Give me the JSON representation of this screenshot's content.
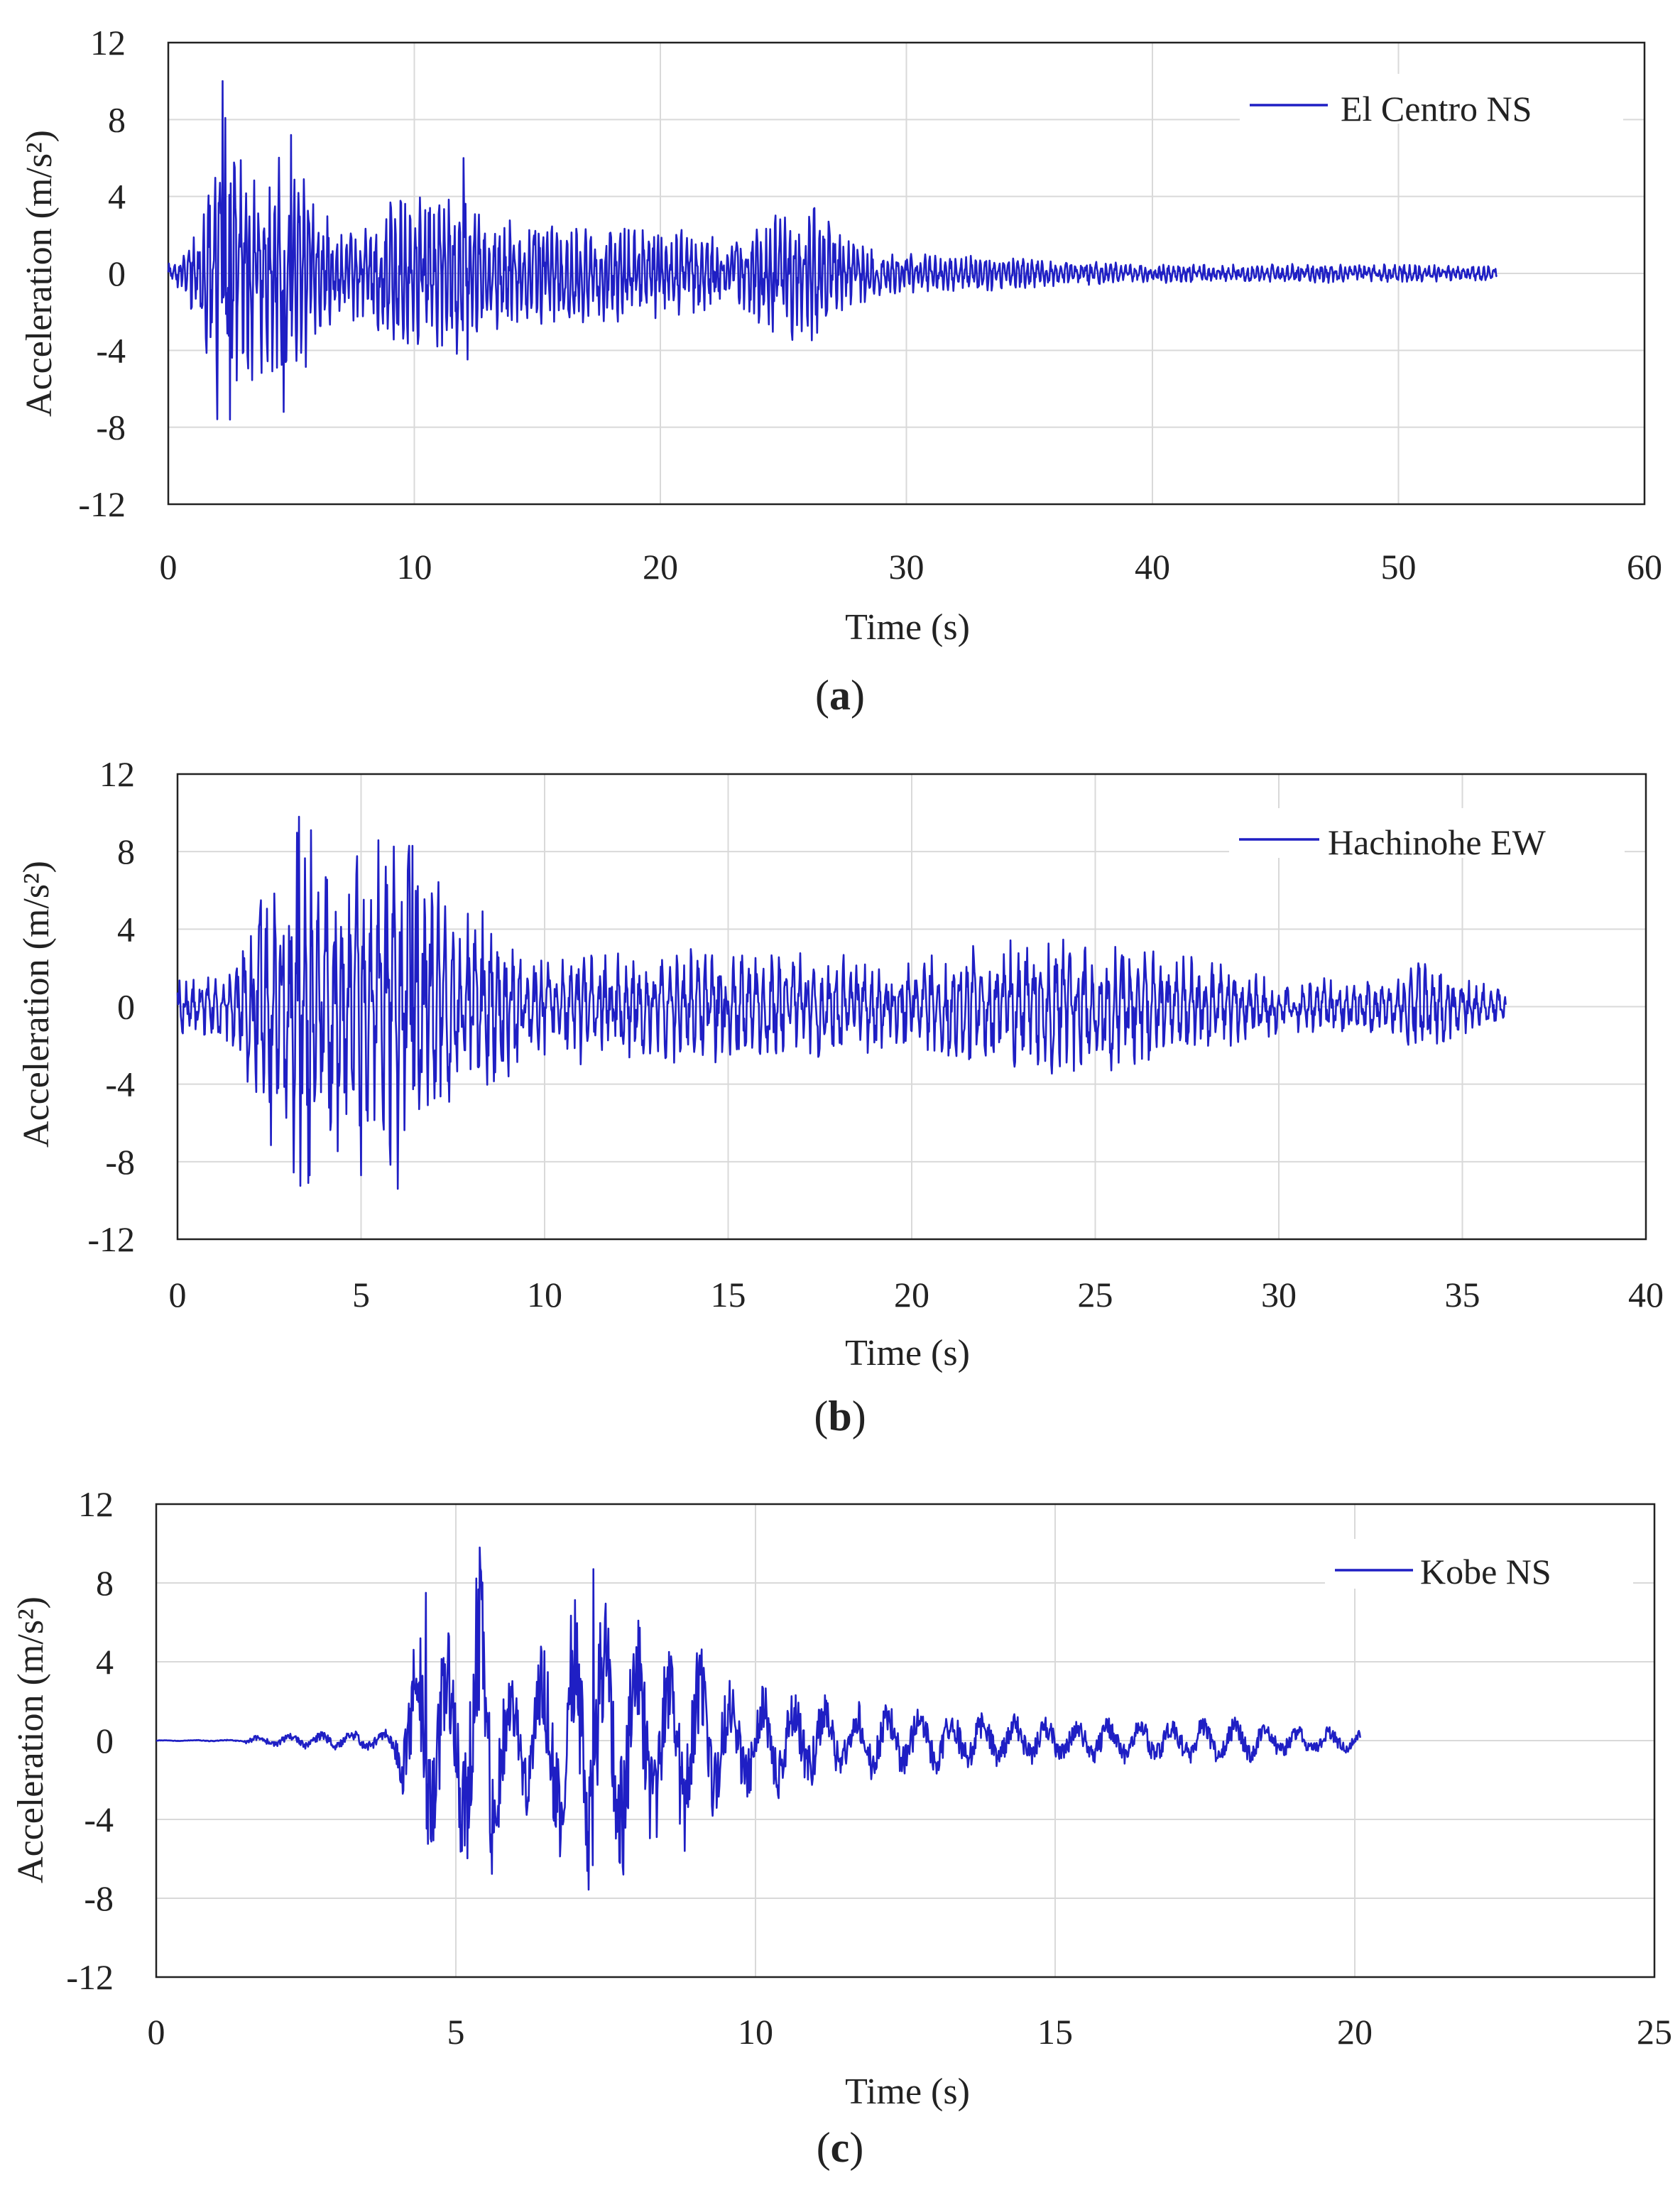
{
  "chart_data": [
    {
      "type": "line",
      "panel_label": "a",
      "xlabel": "Time (s)",
      "ylabel": "Acceleration (m/s²)",
      "xlim": [
        0,
        60
      ],
      "ylim": [
        -12,
        12
      ],
      "xticks": [
        "0",
        "10",
        "20",
        "30",
        "40",
        "50",
        "60"
      ],
      "yticks": [
        "12",
        "8",
        "4",
        "0",
        "-4",
        "-8",
        "-12"
      ],
      "grid": true,
      "legend_position": "top-right",
      "line_color": "#1f1fc4",
      "series": [
        {
          "name": "El Centro NS",
          "duration": 54,
          "envelope": [
            [
              0,
              0.5
            ],
            [
              0.8,
              1.5
            ],
            [
              1.5,
              4
            ],
            [
              2.2,
              10
            ],
            [
              2.6,
              8
            ],
            [
              3.5,
              6
            ],
            [
              4.5,
              7
            ],
            [
              5.2,
              6.5
            ],
            [
              6,
              4
            ],
            [
              7,
              2.5
            ],
            [
              8.5,
              3
            ],
            [
              9.5,
              5
            ],
            [
              10.5,
              4
            ],
            [
              12,
              5
            ],
            [
              13,
              3
            ],
            [
              15,
              3
            ],
            [
              20,
              2.5
            ],
            [
              23,
              2
            ],
            [
              25,
              3.5
            ],
            [
              26.5,
              4
            ],
            [
              27.5,
              2
            ],
            [
              29,
              1.2
            ],
            [
              35,
              0.8
            ],
            [
              40,
              0.5
            ],
            [
              50,
              0.5
            ],
            [
              54,
              0.4
            ]
          ],
          "extremes": [
            [
              2.2,
              10
            ],
            [
              2.5,
              -7.6
            ],
            [
              5,
              7.2
            ],
            [
              4.7,
              -7.2
            ],
            [
              12,
              6
            ]
          ]
        }
      ]
    },
    {
      "type": "line",
      "panel_label": "b",
      "xlabel": "Time (s)",
      "ylabel": "Acceleration (m/s²)",
      "xlim": [
        0,
        40
      ],
      "ylim": [
        -12,
        12
      ],
      "xticks": [
        "0",
        "5",
        "10",
        "15",
        "20",
        "25",
        "30",
        "35",
        "40"
      ],
      "yticks": [
        "12",
        "8",
        "4",
        "0",
        "-4",
        "-8",
        "-12"
      ],
      "grid": true,
      "legend_position": "top-right",
      "line_color": "#1f1fc4",
      "series": [
        {
          "name": "Hachinohe EW",
          "duration": 36.2,
          "envelope": [
            [
              0,
              1.5
            ],
            [
              1.5,
              2
            ],
            [
              2.2,
              6.5
            ],
            [
              2.8,
              8
            ],
            [
              3.3,
              9.8
            ],
            [
              4.3,
              8
            ],
            [
              5,
              8.5
            ],
            [
              6,
              9
            ],
            [
              6.7,
              8
            ],
            [
              7.5,
              5
            ],
            [
              8.8,
              5
            ],
            [
              9.5,
              2.5
            ],
            [
              11,
              3
            ],
            [
              13,
              3
            ],
            [
              15,
              3
            ],
            [
              20,
              2.5
            ],
            [
              22.5,
              3.5
            ],
            [
              25,
              3.5
            ],
            [
              28,
              2.5
            ],
            [
              30,
              1.5
            ],
            [
              33,
              1.5
            ],
            [
              34,
              2.5
            ],
            [
              35,
              1.5
            ],
            [
              36.2,
              1
            ]
          ],
          "extremes": [
            [
              3.3,
              9.8
            ],
            [
              3.6,
              -8.7
            ],
            [
              6,
              -9.4
            ],
            [
              6.4,
              8.3
            ],
            [
              5,
              -8.7
            ]
          ]
        }
      ]
    },
    {
      "type": "line",
      "panel_label": "c",
      "xlabel": "Time (s)",
      "ylabel": "Acceleration (m/s²)",
      "xlim": [
        0,
        25
      ],
      "ylim": [
        -12,
        12
      ],
      "xticks": [
        "0",
        "5",
        "10",
        "15",
        "20",
        "25"
      ],
      "yticks": [
        "12",
        "8",
        "4",
        "0",
        "-4",
        "-8",
        "-12"
      ],
      "grid": true,
      "legend_position": "top-right",
      "line_color": "#1f1fc4",
      "series": [
        {
          "name": "Kobe NS",
          "duration": 20.1,
          "envelope": [
            [
              0,
              0.02
            ],
            [
              1.4,
              0.05
            ],
            [
              1.6,
              0.3
            ],
            [
              3.9,
              0.6
            ],
            [
              4.2,
              4
            ],
            [
              4.5,
              7.5
            ],
            [
              5,
              5.5
            ],
            [
              5.4,
              9.8
            ],
            [
              6,
              3
            ],
            [
              7.3,
              8.7
            ],
            [
              7.8,
              6.8
            ],
            [
              8.7,
              6
            ],
            [
              9.2,
              4.5
            ],
            [
              9.9,
              3.5
            ],
            [
              10.5,
              2.8
            ],
            [
              12,
              2
            ],
            [
              15,
              1.2
            ],
            [
              18,
              1.2
            ],
            [
              20.1,
              0.6
            ]
          ],
          "extremes": [
            [
              5.4,
              9.8
            ],
            [
              7.3,
              8.7
            ],
            [
              7.8,
              -6.8
            ],
            [
              4.5,
              7.5
            ],
            [
              5.1,
              -5.6
            ]
          ]
        }
      ]
    }
  ]
}
